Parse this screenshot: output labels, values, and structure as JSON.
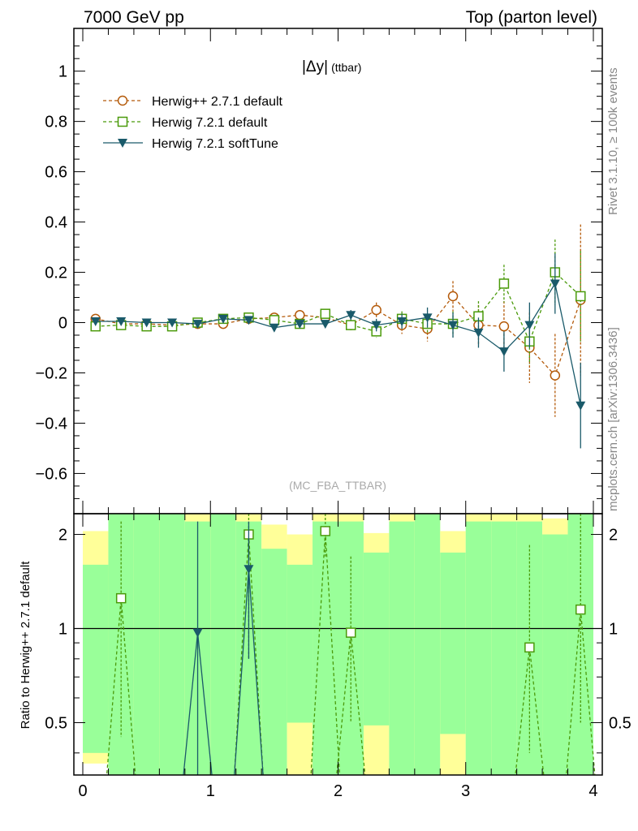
{
  "header": {
    "energy_label": "7000 GeV pp",
    "process_label": "Top (parton level)",
    "side_label_rivet": "Rivet 3.1.10, ≥ 100k events",
    "side_label_mcplots": "mcplots.cern.ch [arXiv:1306.3436]"
  },
  "chart_data": [
    {
      "type": "line",
      "title": "|Δy| (ttbar)",
      "title_main": "|Δy|",
      "title_sub": "(ttbar)",
      "watermark": "(MC_FBA_TTBAR)",
      "xlim": [
        -0.07,
        4.07
      ],
      "ylim": [
        -0.76,
        1.17
      ],
      "ytick_labels": [
        "−0.6",
        "−0.4",
        "−0.2",
        "0",
        "0.2",
        "0.4",
        "0.6",
        "0.8",
        "1"
      ],
      "ytick_values": [
        -0.6,
        -0.4,
        -0.2,
        0,
        0.2,
        0.4,
        0.6,
        0.8,
        1
      ],
      "legend_placement": "top-left",
      "x": [
        0.1,
        0.3,
        0.5,
        0.7,
        0.9,
        1.1,
        1.3,
        1.5,
        1.7,
        1.9,
        2.1,
        2.3,
        2.5,
        2.7,
        2.9,
        3.1,
        3.3,
        3.5,
        3.7,
        3.9
      ],
      "series": [
        {
          "name": "Herwig++ 2.7.1 default",
          "color": "#b45a0a",
          "marker": "open-circle",
          "dashed": true,
          "values": [
            0.015,
            -0.005,
            -0.005,
            -0.01,
            -0.005,
            -0.005,
            0.015,
            0.02,
            0.03,
            0.02,
            -0.01,
            0.05,
            -0.01,
            -0.025,
            0.105,
            -0.01,
            -0.015,
            -0.1,
            -0.21,
            0.09
          ],
          "errors": [
            0.008,
            0.008,
            0.008,
            0.008,
            0.01,
            0.01,
            0.01,
            0.012,
            0.012,
            0.015,
            0.02,
            0.03,
            0.035,
            0.05,
            0.06,
            0.08,
            0.1,
            0.14,
            0.165,
            0.3
          ]
        },
        {
          "name": "Herwig 7.2.1 default",
          "color": "#4a9a0a",
          "marker": "open-square",
          "dashed": true,
          "values": [
            -0.015,
            -0.01,
            -0.015,
            -0.015,
            0.0,
            0.015,
            0.02,
            0.01,
            -0.005,
            0.035,
            -0.01,
            -0.035,
            0.015,
            -0.005,
            -0.005,
            0.025,
            0.155,
            -0.075,
            0.2,
            0.105
          ],
          "errors": [
            0.008,
            0.008,
            0.008,
            0.008,
            0.01,
            0.01,
            0.01,
            0.012,
            0.012,
            0.015,
            0.02,
            0.025,
            0.03,
            0.04,
            0.05,
            0.06,
            0.075,
            0.09,
            0.13,
            0.18
          ]
        },
        {
          "name": "Herwig 7.2.1 softTune",
          "color": "#1a5a6a",
          "marker": "filled-triangle-down",
          "dashed": false,
          "values": [
            0.005,
            0.005,
            0.0,
            0.0,
            -0.005,
            0.015,
            0.01,
            -0.02,
            -0.005,
            -0.005,
            0.03,
            -0.01,
            0.005,
            0.02,
            -0.01,
            -0.04,
            -0.115,
            -0.01,
            0.155,
            -0.33
          ],
          "errors": [
            0.008,
            0.008,
            0.008,
            0.008,
            0.01,
            0.01,
            0.01,
            0.012,
            0.012,
            0.015,
            0.02,
            0.025,
            0.03,
            0.04,
            0.05,
            0.06,
            0.08,
            0.09,
            0.12,
            0.17
          ]
        }
      ]
    },
    {
      "type": "line",
      "ylabel": "Ratio to Herwig++ 2.7.1 default",
      "xlim": [
        -0.07,
        4.07
      ],
      "ylim": [
        0.34,
        2.33
      ],
      "yscale": "log",
      "xtick_labels": [
        "0",
        "1",
        "2",
        "3",
        "4"
      ],
      "xtick_values": [
        0,
        1,
        2,
        3,
        4
      ],
      "ytick_labels": [
        "0.5",
        "1",
        "2"
      ],
      "ytick_values": [
        0.5,
        1,
        2
      ],
      "reference_line": 1,
      "bins": [
        [
          0.0,
          0.2
        ],
        [
          0.2,
          0.4
        ],
        [
          0.4,
          0.6
        ],
        [
          0.6,
          0.8
        ],
        [
          0.8,
          1.0
        ],
        [
          1.0,
          1.2
        ],
        [
          1.2,
          1.4
        ],
        [
          1.4,
          1.6
        ],
        [
          1.6,
          1.8
        ],
        [
          1.8,
          2.0
        ],
        [
          2.0,
          2.2
        ],
        [
          2.2,
          2.4
        ],
        [
          2.4,
          2.6
        ],
        [
          2.6,
          2.8
        ],
        [
          2.8,
          3.0
        ],
        [
          3.0,
          3.2
        ],
        [
          3.2,
          3.4
        ],
        [
          3.4,
          3.6
        ],
        [
          3.6,
          3.8
        ],
        [
          3.8,
          4.0
        ]
      ],
      "band_inner": [
        [
          0.4,
          1.6
        ],
        [
          0.34,
          2.33
        ],
        [
          0.34,
          2.33
        ],
        [
          0.34,
          2.33
        ],
        [
          0.34,
          2.2
        ],
        [
          0.34,
          2.33
        ],
        [
          0.34,
          2.2
        ],
        [
          0.34,
          1.8
        ],
        [
          0.5,
          1.6
        ],
        [
          0.34,
          2.2
        ],
        [
          0.34,
          2.2
        ],
        [
          0.49,
          1.75
        ],
        [
          0.34,
          2.2
        ],
        [
          0.34,
          2.33
        ],
        [
          0.46,
          1.75
        ],
        [
          0.34,
          2.2
        ],
        [
          0.34,
          2.2
        ],
        [
          0.34,
          2.2
        ],
        [
          0.34,
          2.0
        ],
        [
          0.34,
          2.33
        ]
      ],
      "band_outer": [
        [
          0.37,
          2.05
        ],
        [
          0.34,
          2.33
        ],
        [
          0.34,
          2.33
        ],
        [
          0.34,
          2.33
        ],
        [
          0.34,
          2.33
        ],
        [
          0.34,
          2.33
        ],
        [
          0.34,
          2.33
        ],
        [
          0.34,
          2.15
        ],
        [
          0.34,
          2.0
        ],
        [
          0.34,
          2.33
        ],
        [
          0.34,
          2.33
        ],
        [
          0.34,
          2.02
        ],
        [
          0.34,
          2.33
        ],
        [
          0.34,
          2.28
        ],
        [
          0.34,
          2.05
        ],
        [
          0.34,
          2.33
        ],
        [
          0.34,
          2.33
        ],
        [
          0.34,
          2.33
        ],
        [
          0.34,
          2.25
        ],
        [
          0.34,
          2.33
        ]
      ],
      "series": [
        {
          "name": "Herwig 7.2.1 default",
          "color": "#4a9a0a",
          "marker": "open-square",
          "dashed": true,
          "x": [
            0.3,
            1.3,
            1.9,
            2.1,
            3.5,
            3.9
          ],
          "values": [
            1.25,
            2.0,
            2.05,
            0.97,
            0.87,
            1.15
          ],
          "errors": [
            [
              0.45,
              2.2
            ],
            [
              0.8,
              2.33
            ],
            [
              1.7,
              2.33
            ],
            [
              0.5,
              1.7
            ],
            [
              0.4,
              1.85
            ],
            [
              0.5,
              2.33
            ]
          ]
        },
        {
          "name": "Herwig 7.2.1 softTune",
          "color": "#1a5a6a",
          "marker": "filled-triangle-down",
          "dashed": false,
          "x": [
            0.9,
            1.3
          ],
          "values": [
            0.97,
            1.55
          ],
          "errors": [
            [
              0.34,
              2.2
            ],
            [
              0.8,
              2.2
            ]
          ]
        }
      ]
    }
  ]
}
